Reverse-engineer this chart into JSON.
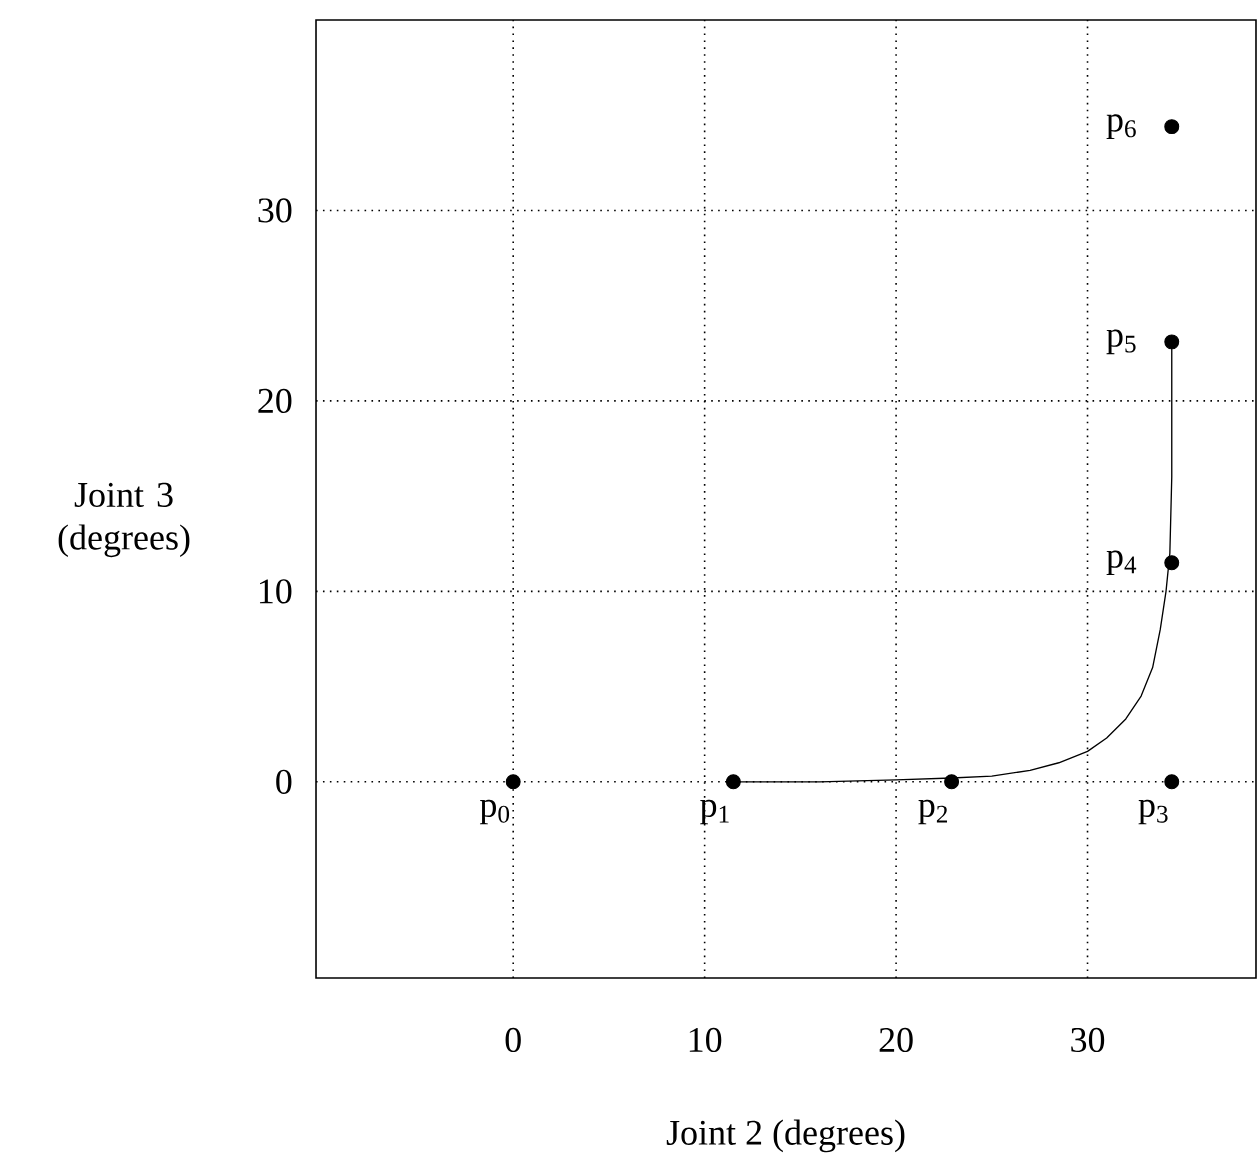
{
  "chart_data": {
    "type": "scatter",
    "xlabel": "Joint 2 (degrees)",
    "ylabel": "Joint 3 (degrees)",
    "xlim": [
      -10.3,
      38.8
    ],
    "ylim": [
      -10.3,
      40
    ],
    "xticks": [
      0,
      10,
      20,
      30
    ],
    "yticks": [
      0,
      10,
      20,
      30
    ],
    "grid": true,
    "series": [
      {
        "type": "line",
        "color": "#000000",
        "marker": "none",
        "x": [
          11.5,
          16,
          20,
          22.9,
          25,
          27,
          28.5,
          30,
          31,
          32,
          32.8,
          33.4,
          33.8,
          34.1,
          34.3,
          34.4,
          34.4
        ],
        "values": [
          0,
          0,
          0.1,
          0.2,
          0.3,
          0.6,
          1.0,
          1.6,
          2.3,
          3.3,
          4.5,
          6,
          8,
          10,
          12,
          16,
          23.1
        ]
      },
      {
        "color": "#000000",
        "marker": "circle",
        "x": [
          0,
          11.5,
          22.9,
          34.4,
          34.4,
          34.4,
          34.4
        ],
        "values": [
          0,
          0,
          0,
          0,
          11.5,
          23.1,
          34.4
        ]
      }
    ],
    "annotations": [
      {
        "text": "p$_{0}$",
        "x": 0,
        "y": 0
      },
      {
        "text": "p$_{1}$",
        "x": 11.5,
        "y": 0
      },
      {
        "text": "p$_{2}$",
        "x": 22.9,
        "y": 0
      },
      {
        "text": "p$_{3}$",
        "x": 34.4,
        "y": 0
      },
      {
        "text": "p$_{4}$",
        "x": 34.4,
        "y": 11.5
      },
      {
        "text": "p$_{5}$",
        "x": 34.4,
        "y": 23.1
      },
      {
        "text": "p$_{6}$",
        "x": 34.4,
        "y": 34.4
      }
    ]
  }
}
